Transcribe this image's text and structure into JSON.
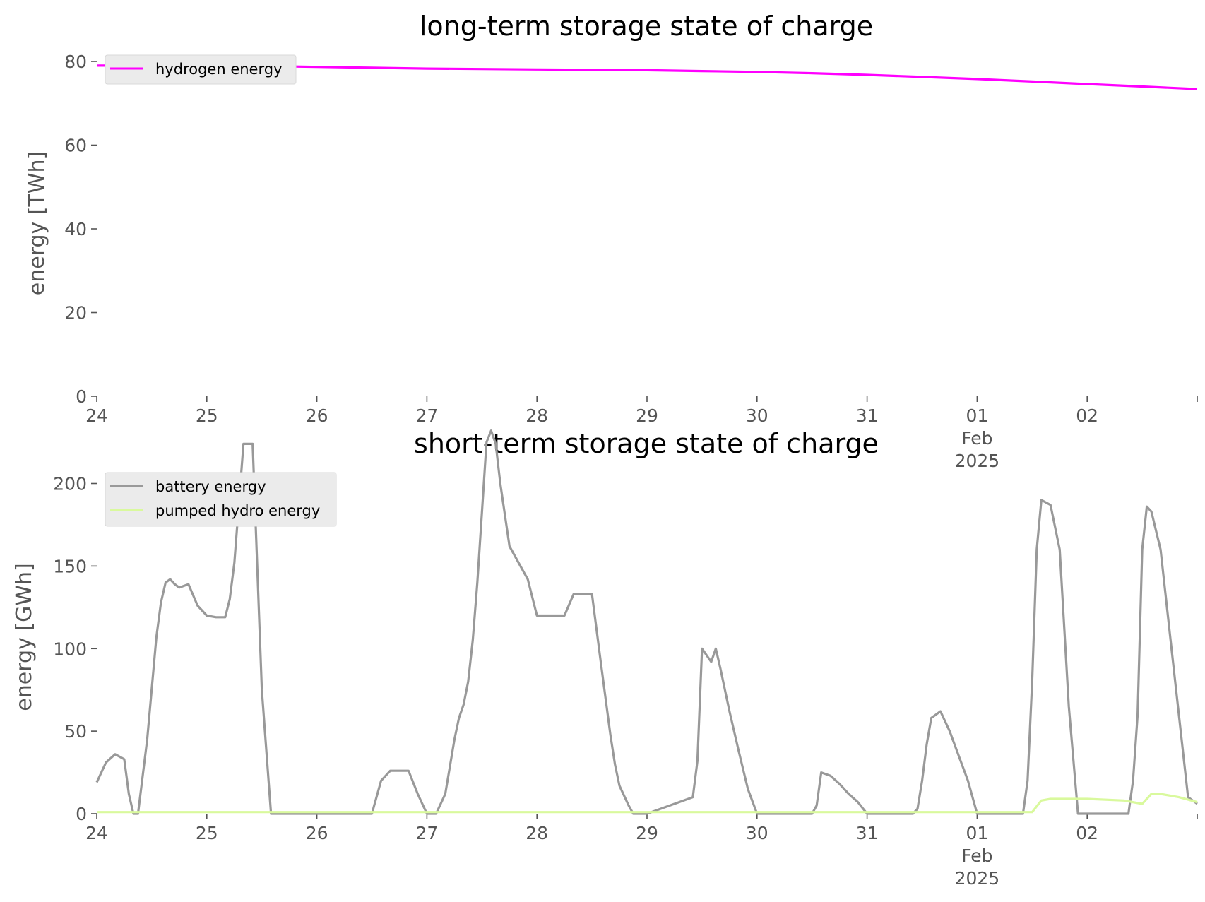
{
  "chart_data": [
    {
      "type": "line",
      "title": "long-term storage state of charge",
      "xlabel": "",
      "ylabel": "energy [TWh]",
      "xlim": [
        "2025-01-24",
        "2025-02-03"
      ],
      "ylim": [
        0,
        80
      ],
      "yticks": [
        0,
        20,
        40,
        60,
        80
      ],
      "xtick_labels": [
        {
          "date": "2025-01-24",
          "lines": [
            "24"
          ]
        },
        {
          "date": "2025-01-25",
          "lines": [
            "25"
          ]
        },
        {
          "date": "2025-01-26",
          "lines": [
            "26"
          ]
        },
        {
          "date": "2025-01-27",
          "lines": [
            "27"
          ]
        },
        {
          "date": "2025-01-28",
          "lines": [
            "28"
          ]
        },
        {
          "date": "2025-01-29",
          "lines": [
            "29"
          ]
        },
        {
          "date": "2025-01-30",
          "lines": [
            "30"
          ]
        },
        {
          "date": "2025-01-31",
          "lines": [
            "31"
          ]
        },
        {
          "date": "2025-02-01",
          "lines": [
            "01",
            "Feb",
            "2025"
          ]
        },
        {
          "date": "2025-02-02",
          "lines": [
            "02"
          ]
        },
        {
          "date": "2025-02-03",
          "lines": []
        }
      ],
      "grid": false,
      "legend": "top-left",
      "series": [
        {
          "name": "hydrogen energy",
          "color": "#ff00ff",
          "x": [
            "2025-01-24 00:00",
            "2025-01-24 12:00",
            "2025-01-25 00:00",
            "2025-01-25 12:00",
            "2025-01-26 00:00",
            "2025-01-26 12:00",
            "2025-01-27 00:00",
            "2025-01-27 12:00",
            "2025-01-28 00:00",
            "2025-01-28 12:00",
            "2025-01-29 00:00",
            "2025-01-29 12:00",
            "2025-01-30 00:00",
            "2025-01-30 12:00",
            "2025-01-31 00:00",
            "2025-01-31 12:00",
            "2025-02-01 00:00",
            "2025-02-01 12:00",
            "2025-02-02 00:00",
            "2025-02-02 12:00",
            "2025-02-03 00:00"
          ],
          "y": [
            79,
            79,
            79,
            78.9,
            78.7,
            78.5,
            78.3,
            78.2,
            78.1,
            78,
            77.9,
            77.7,
            77.5,
            77.2,
            76.8,
            76.3,
            75.8,
            75.2,
            74.6,
            74,
            73.4
          ]
        }
      ]
    },
    {
      "type": "line",
      "title": "short-term storage state of charge",
      "xlabel": "",
      "ylabel": "energy [GWh]",
      "xlim": [
        "2025-01-24",
        "2025-02-03"
      ],
      "ylim": [
        0,
        240
      ],
      "yticks": [
        0,
        50,
        100,
        150,
        200
      ],
      "xtick_labels": [
        {
          "date": "2025-01-24",
          "lines": [
            "24"
          ]
        },
        {
          "date": "2025-01-25",
          "lines": [
            "25"
          ]
        },
        {
          "date": "2025-01-26",
          "lines": [
            "26"
          ]
        },
        {
          "date": "2025-01-27",
          "lines": [
            "27"
          ]
        },
        {
          "date": "2025-01-28",
          "lines": [
            "28"
          ]
        },
        {
          "date": "2025-01-29",
          "lines": [
            "29"
          ]
        },
        {
          "date": "2025-01-30",
          "lines": [
            "30"
          ]
        },
        {
          "date": "2025-01-31",
          "lines": [
            "31"
          ]
        },
        {
          "date": "2025-02-01",
          "lines": [
            "01",
            "Feb",
            "2025"
          ]
        },
        {
          "date": "2025-02-02",
          "lines": [
            "02"
          ]
        },
        {
          "date": "2025-02-03",
          "lines": []
        }
      ],
      "grid": false,
      "legend": "top-left",
      "series": [
        {
          "name": "battery energy",
          "color": "#999999",
          "x": [
            "2025-01-24 00:00",
            "2025-01-24 02:00",
            "2025-01-24 04:00",
            "2025-01-24 06:00",
            "2025-01-24 07:00",
            "2025-01-24 08:00",
            "2025-01-24 09:00",
            "2025-01-24 11:00",
            "2025-01-24 13:00",
            "2025-01-24 14:00",
            "2025-01-24 15:00",
            "2025-01-24 16:00",
            "2025-01-24 17:00",
            "2025-01-24 18:00",
            "2025-01-24 20:00",
            "2025-01-24 22:00",
            "2025-01-25 00:00",
            "2025-01-25 02:00",
            "2025-01-25 04:00",
            "2025-01-25 05:00",
            "2025-01-25 06:00",
            "2025-01-25 08:00",
            "2025-01-25 09:00",
            "2025-01-25 10:00",
            "2025-01-25 12:00",
            "2025-01-25 14:00",
            "2025-01-25 16:00",
            "2025-01-25 18:00",
            "2025-01-25 20:00",
            "2025-01-25 22:00",
            "2025-01-26 00:00",
            "2025-01-26 12:00",
            "2025-01-26 14:00",
            "2025-01-26 16:00",
            "2025-01-26 18:00",
            "2025-01-26 20:00",
            "2025-01-26 22:00",
            "2025-01-27 00:00",
            "2025-01-27 02:00",
            "2025-01-27 04:00",
            "2025-01-27 06:00",
            "2025-01-27 07:00",
            "2025-01-27 08:00",
            "2025-01-27 09:00",
            "2025-01-27 10:00",
            "2025-01-27 11:00",
            "2025-01-27 13:00",
            "2025-01-27 14:00",
            "2025-01-27 15:00",
            "2025-01-27 16:00",
            "2025-01-27 18:00",
            "2025-01-27 20:00",
            "2025-01-27 22:00",
            "2025-01-28 00:00",
            "2025-01-28 02:00",
            "2025-01-28 04:00",
            "2025-01-28 06:00",
            "2025-01-28 08:00",
            "2025-01-28 10:00",
            "2025-01-28 12:00",
            "2025-01-28 14:00",
            "2025-01-28 16:00",
            "2025-01-28 17:00",
            "2025-01-28 18:00",
            "2025-01-28 20:00",
            "2025-01-28 21:00",
            "2025-01-28 22:00",
            "2025-01-29 00:00",
            "2025-01-29 10:00",
            "2025-01-29 11:00",
            "2025-01-29 12:00",
            "2025-01-29 14:00",
            "2025-01-29 15:00",
            "2025-01-29 16:00",
            "2025-01-29 18:00",
            "2025-01-29 20:00",
            "2025-01-29 22:00",
            "2025-01-30 00:00",
            "2025-01-30 12:00",
            "2025-01-30 13:00",
            "2025-01-30 14:00",
            "2025-01-30 16:00",
            "2025-01-30 18:00",
            "2025-01-30 20:00",
            "2025-01-30 22:00",
            "2025-01-31 00:00",
            "2025-01-31 10:00",
            "2025-01-31 11:00",
            "2025-01-31 12:00",
            "2025-01-31 13:00",
            "2025-01-31 14:00",
            "2025-01-31 16:00",
            "2025-01-31 18:00",
            "2025-01-31 20:00",
            "2025-01-31 22:00",
            "2025-02-01 00:00",
            "2025-02-01 10:00",
            "2025-02-01 11:00",
            "2025-02-01 12:00",
            "2025-02-01 13:00",
            "2025-02-01 14:00",
            "2025-02-01 16:00",
            "2025-02-01 18:00",
            "2025-02-01 20:00",
            "2025-02-01 22:00",
            "2025-02-02 00:00",
            "2025-02-02 09:00",
            "2025-02-02 10:00",
            "2025-02-02 11:00",
            "2025-02-02 12:00",
            "2025-02-02 13:00",
            "2025-02-02 14:00",
            "2025-02-02 16:00",
            "2025-02-02 18:00",
            "2025-02-02 20:00",
            "2025-02-02 22:00",
            "2025-02-03 00:00"
          ],
          "y": [
            19,
            31,
            36,
            33,
            12,
            0,
            0,
            45,
            107,
            128,
            140,
            142,
            139,
            137,
            139,
            126,
            120,
            119,
            119,
            130,
            152,
            224,
            224,
            224,
            75,
            0,
            0,
            0,
            0,
            0,
            0,
            0,
            20,
            26,
            26,
            26,
            12,
            0,
            0,
            12,
            45,
            58,
            66,
            80,
            105,
            140,
            225,
            232,
            224,
            200,
            162,
            152,
            142,
            120,
            120,
            120,
            120,
            133,
            133,
            133,
            90,
            48,
            30,
            17,
            5,
            0,
            0,
            0,
            10,
            32,
            100,
            92,
            100,
            88,
            62,
            38,
            15,
            0,
            0,
            5,
            25,
            23,
            18,
            12,
            7,
            0,
            0,
            3,
            20,
            42,
            58,
            62,
            50,
            35,
            20,
            0,
            0,
            20,
            80,
            160,
            190,
            187,
            160,
            65,
            0,
            0,
            0,
            20,
            60,
            160,
            186,
            183,
            160,
            110,
            60,
            10,
            0
          ],
          "y_last_correction": [
            6
          ]
        },
        {
          "name": "pumped hydro energy",
          "color": "#d9f99d",
          "x": [
            "2025-01-24 00:00",
            "2025-02-01 12:00",
            "2025-02-01 14:00",
            "2025-02-01 16:00",
            "2025-02-01 20:00",
            "2025-02-02 00:00",
            "2025-02-02 08:00",
            "2025-02-02 12:00",
            "2025-02-02 14:00",
            "2025-02-02 16:00",
            "2025-02-02 20:00",
            "2025-02-03 00:00"
          ],
          "y": [
            1,
            1,
            8,
            9,
            9,
            9,
            8,
            6,
            12,
            12,
            10,
            7
          ]
        }
      ]
    }
  ]
}
